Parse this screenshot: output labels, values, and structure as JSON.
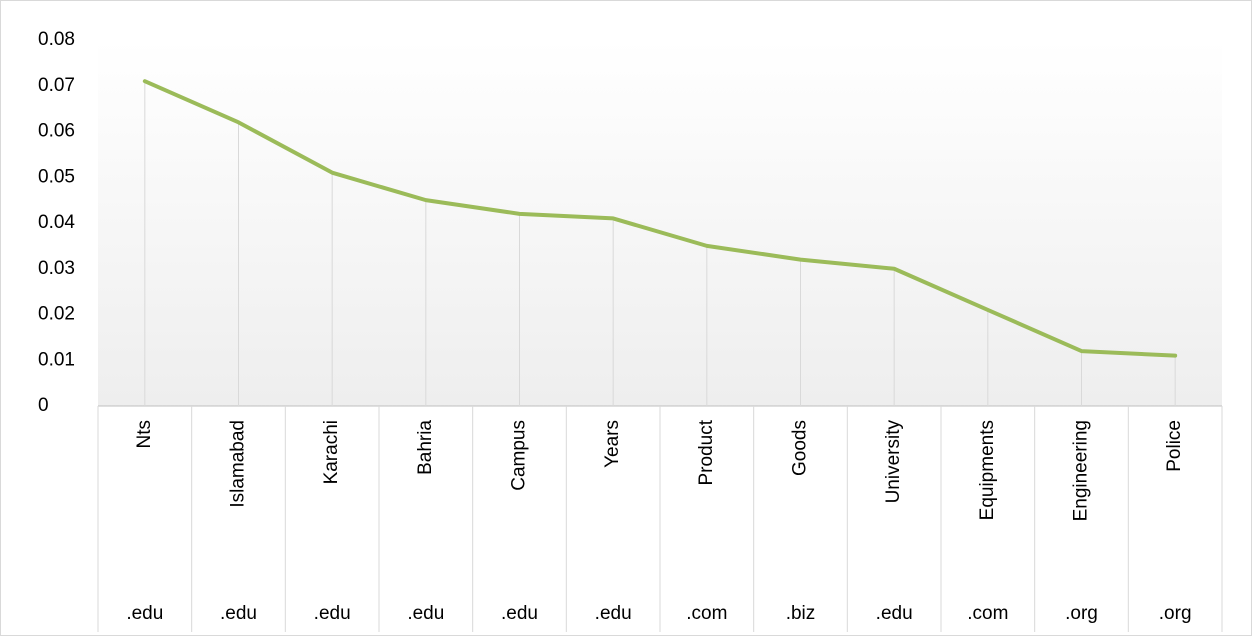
{
  "chart_data": {
    "type": "line",
    "categories": [
      "Nts",
      "Islamabad",
      "Karachi",
      "Bahria",
      "Campus",
      "Years",
      "Product",
      "Goods",
      "University",
      "Equipments",
      "Engineering",
      "Police"
    ],
    "category_groups": [
      ".edu",
      ".edu",
      ".edu",
      ".edu",
      ".edu",
      ".edu",
      ".com",
      ".biz",
      ".edu",
      ".com",
      ".org",
      ".org"
    ],
    "values": [
      0.071,
      0.062,
      0.051,
      0.045,
      0.042,
      0.041,
      0.035,
      0.032,
      0.03,
      0.021,
      0.012,
      0.011
    ],
    "color": "#9bbb59",
    "ylim": [
      0,
      0.08
    ],
    "yticks": [
      0,
      0.01,
      0.02,
      0.03,
      0.04,
      0.05,
      0.06,
      0.07,
      0.08
    ],
    "drop_lines": true
  }
}
